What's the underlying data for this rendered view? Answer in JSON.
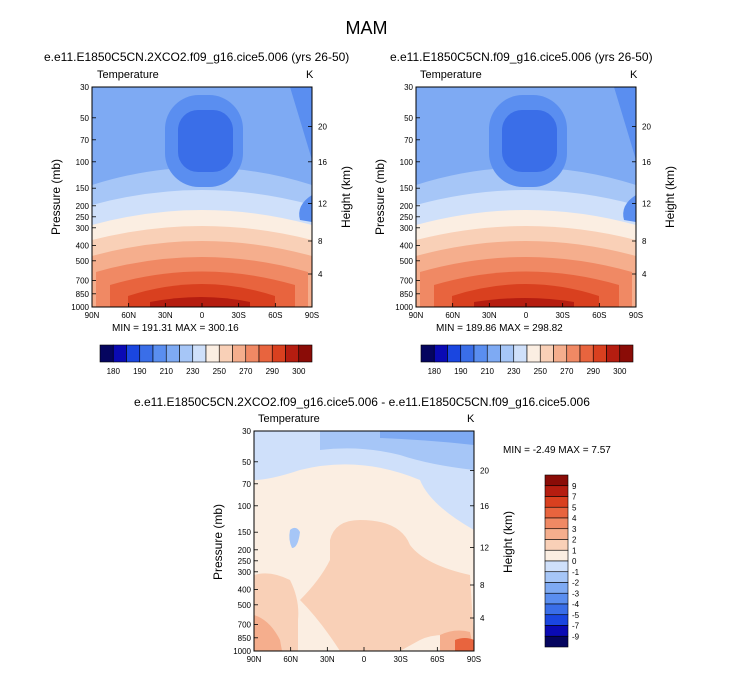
{
  "page": {
    "title": "MAM"
  },
  "colors": {
    "scale": [
      "#05055f",
      "#0a0ab4",
      "#1a46e0",
      "#3a6ee8",
      "#5a8ef0",
      "#7eaaf3",
      "#a6c6f7",
      "#cfe0fa",
      "#fbeee2",
      "#f9d0b7",
      "#f5ae8d",
      "#f08964",
      "#e8643e",
      "#d9401f",
      "#b51d10",
      "#8a0c07"
    ],
    "diff_scale": [
      "#05055f",
      "#0a0ab4",
      "#1a46e0",
      "#3a6ee8",
      "#5a8ef0",
      "#7eaaf3",
      "#a6c6f7",
      "#cfe0fa",
      "#fbeee2",
      "#f9d0b7",
      "#f5ae8d",
      "#f08964",
      "#e8643e",
      "#d9401f",
      "#b51d10",
      "#8a0c07"
    ]
  },
  "chart_data": [
    {
      "type": "heatmap",
      "title": "e.e11.E1850C5CN.2XCO2.f09_g16.cice5.006 (yrs 26-50)",
      "variable": "Temperature",
      "units": "K",
      "xlabel": "",
      "ylabel": "Pressure (mb)",
      "y2label": "Height (km)",
      "x_ticks": [
        "90N",
        "60N",
        "30N",
        "0",
        "30S",
        "60S",
        "90S"
      ],
      "y_ticks": [
        "30",
        "50",
        "70",
        "100",
        "150",
        "200",
        "250",
        "300",
        "400",
        "500",
        "700",
        "850",
        "1000"
      ],
      "y2_ticks": [
        "20",
        "16",
        "12",
        "8",
        "4"
      ],
      "stats": "MIN = 191.31   MAX = 300.16",
      "colorbar_labels": [
        "180",
        "190",
        "210",
        "230",
        "250",
        "270",
        "290",
        "300"
      ]
    },
    {
      "type": "heatmap",
      "title": "e.e11.E1850C5CN.f09_g16.cice5.006 (yrs 26-50)",
      "variable": "Temperature",
      "units": "K",
      "xlabel": "",
      "ylabel": "Pressure (mb)",
      "y2label": "Height (km)",
      "x_ticks": [
        "90N",
        "60N",
        "30N",
        "0",
        "30S",
        "60S",
        "90S"
      ],
      "y_ticks": [
        "30",
        "50",
        "70",
        "100",
        "150",
        "200",
        "250",
        "300",
        "400",
        "500",
        "700",
        "850",
        "1000"
      ],
      "y2_ticks": [
        "20",
        "16",
        "12",
        "8",
        "4"
      ],
      "stats": "MIN = 189.86   MAX = 298.82",
      "colorbar_labels": [
        "180",
        "190",
        "210",
        "230",
        "250",
        "270",
        "290",
        "300"
      ]
    },
    {
      "type": "heatmap",
      "title": "e.e11.E1850C5CN.2XCO2.f09_g16.cice5.006 - e.e11.E1850C5CN.f09_g16.cice5.006",
      "variable": "Temperature",
      "units": "K",
      "xlabel": "",
      "ylabel": "Pressure (mb)",
      "y2label": "Height (km)",
      "x_ticks": [
        "90N",
        "60N",
        "30N",
        "0",
        "30S",
        "60S",
        "90S"
      ],
      "y_ticks": [
        "30",
        "50",
        "70",
        "100",
        "150",
        "200",
        "250",
        "300",
        "400",
        "500",
        "700",
        "850",
        "1000"
      ],
      "y2_ticks": [
        "20",
        "16",
        "12",
        "8",
        "4"
      ],
      "stats": "MIN =  -2.49   MAX =   7.57",
      "colorbar_labels": [
        "9",
        "7",
        "5",
        "4",
        "3",
        "2",
        "1",
        "0",
        "-1",
        "-2",
        "-3",
        "-4",
        "-5",
        "-7",
        "-9"
      ]
    }
  ]
}
